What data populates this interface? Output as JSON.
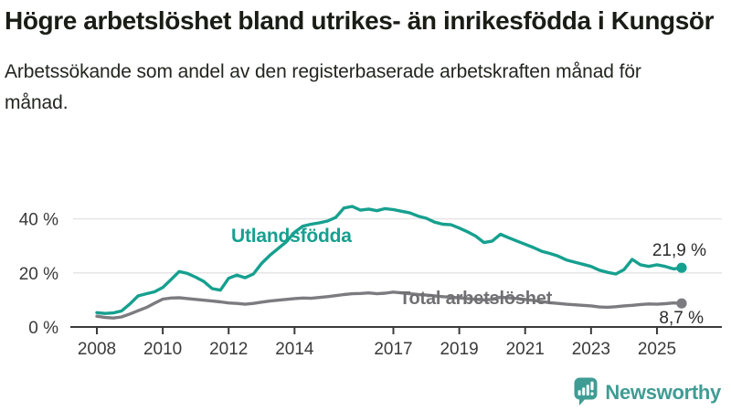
{
  "header": {
    "title": "Högre arbetslöshet bland utrikes- än inrikesfödda i Kungsör",
    "subtitle": "Arbetssökande som andel av den registerbaserade arbetskraften månad för månad."
  },
  "chart_data": {
    "type": "line",
    "unit": "%",
    "x_start": 2008.0,
    "x_step_years": 0.25,
    "x_end": 2025.75,
    "x_ticks": [
      2008,
      2010,
      2012,
      2014,
      2017,
      2019,
      2021,
      2023,
      2025
    ],
    "y_ticks": [
      0,
      20,
      40
    ],
    "y_tick_suffix": " %",
    "ylim": [
      0,
      48
    ],
    "grid": "horizontal-only",
    "legend_position": "inline-labels",
    "series": [
      {
        "name": "Utlandsfödda",
        "color": "#16a08f",
        "end_label": "21,9 %",
        "end_value": 21.9,
        "values": [
          5.3,
          5.0,
          5.2,
          5.9,
          8.5,
          11.5,
          12.3,
          13.0,
          14.6,
          17.5,
          20.5,
          19.8,
          18.4,
          16.8,
          14.2,
          13.6,
          18.0,
          19.2,
          18.2,
          19.6,
          23.5,
          26.5,
          29.0,
          31.5,
          35.0,
          37.3,
          38.0,
          38.5,
          39.2,
          40.5,
          44.0,
          44.6,
          43.2,
          43.6,
          43.0,
          43.8,
          43.4,
          42.8,
          42.2,
          41.0,
          40.2,
          38.8,
          38.0,
          37.8,
          36.6,
          35.2,
          33.6,
          31.2,
          31.8,
          34.3,
          33.0,
          31.8,
          30.6,
          29.4,
          28.0,
          27.2,
          26.2,
          24.8,
          24.0,
          23.2,
          22.4,
          21.0,
          20.2,
          19.6,
          21.2,
          25.0,
          23.0,
          22.4,
          23.0,
          22.4,
          21.5,
          21.9
        ]
      },
      {
        "name": "Total arbetslöshet",
        "color": "#7c7c80",
        "label_color": "#707074",
        "end_label": "8,7 %",
        "end_value": 8.7,
        "values": [
          4.0,
          3.5,
          3.3,
          3.7,
          4.8,
          6.0,
          7.2,
          8.8,
          10.3,
          10.7,
          10.8,
          10.5,
          10.2,
          9.9,
          9.6,
          9.3,
          8.9,
          8.7,
          8.4,
          8.7,
          9.2,
          9.6,
          9.9,
          10.2,
          10.5,
          10.7,
          10.6,
          10.9,
          11.2,
          11.6,
          12.0,
          12.3,
          12.4,
          12.6,
          12.3,
          12.5,
          12.9,
          12.6,
          12.3,
          12.0,
          11.8,
          11.5,
          11.2,
          11.0,
          10.8,
          10.5,
          10.2,
          10.0,
          10.2,
          11.0,
          10.8,
          10.5,
          10.2,
          9.8,
          9.4,
          9.0,
          8.7,
          8.4,
          8.2,
          8.0,
          7.8,
          7.4,
          7.3,
          7.5,
          7.8,
          8.0,
          8.3,
          8.5,
          8.4,
          8.6,
          8.9,
          8.7
        ]
      }
    ]
  },
  "style": {
    "axis_color": "#3b3b3b",
    "grid_color": "#e3e3e3",
    "text_color": "#3a3a3a",
    "title_color": "#1a1d16"
  },
  "branding": {
    "logo_text": "Newsworthy",
    "logo_color": "#3f9c94",
    "logo_icon": "speech-bubble-bar-chart-icon"
  }
}
